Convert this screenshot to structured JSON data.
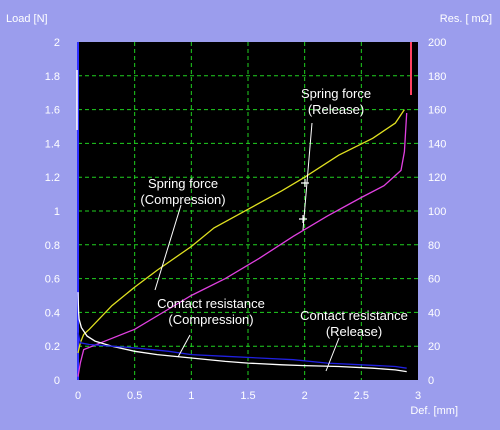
{
  "chart_data": {
    "type": "line",
    "left_axis_label": "Load [N]",
    "right_axis_label": "Res. [ mΩ]",
    "x_axis_label": "Def. [mm]",
    "xlim": [
      0,
      3
    ],
    "ylim_left": [
      0,
      2
    ],
    "ylim_right": [
      0,
      200
    ],
    "x_ticks": [
      "0",
      "0.5",
      "1",
      "1.5",
      "2",
      "2.5",
      "3"
    ],
    "y_left_ticks": [
      "0",
      "0.2",
      "0.4",
      "0.6",
      "0.8",
      "1",
      "1.2",
      "1.4",
      "1.6",
      "1.8",
      "2"
    ],
    "y_right_ticks": [
      "0",
      "20",
      "40",
      "60",
      "80",
      "100",
      "120",
      "140",
      "160",
      "180",
      "200"
    ],
    "grid": true,
    "background_color": "#000000",
    "grid_color": "#20d020",
    "series": [
      {
        "color": "#e0e020",
        "axis": "left",
        "x": [
          0,
          0.02,
          0.05,
          0.1,
          0.3,
          0.5,
          0.7,
          1.0,
          1.2,
          1.5,
          1.8,
          2.0,
          2.3,
          2.6,
          2.8,
          2.88
        ],
        "y": [
          0.16,
          0.22,
          0.27,
          0.3,
          0.44,
          0.55,
          0.65,
          0.79,
          0.9,
          1.01,
          1.12,
          1.2,
          1.33,
          1.43,
          1.52,
          1.6
        ]
      },
      {
        "color": "#e040e0",
        "axis": "left",
        "x": [
          0,
          0.02,
          0.05,
          0.2,
          0.5,
          0.8,
          1.0,
          1.3,
          1.6,
          1.9,
          2.2,
          2.5,
          2.7,
          2.85,
          2.88,
          2.9
        ],
        "y": [
          0.02,
          0.1,
          0.18,
          0.22,
          0.3,
          0.42,
          0.5,
          0.6,
          0.72,
          0.85,
          0.97,
          1.08,
          1.15,
          1.24,
          1.35,
          1.58
        ]
      },
      {
        "color": "#ffffff",
        "axis": "right",
        "x": [
          0,
          0.005,
          0.01,
          0.03,
          0.08,
          0.15,
          0.3,
          0.5,
          0.7,
          1.0,
          1.3,
          1.5,
          1.8,
          2.0,
          2.3,
          2.6,
          2.8,
          2.9
        ],
        "y": [
          52,
          40,
          36,
          31,
          26,
          23,
          20,
          17,
          15,
          13,
          11,
          10,
          9,
          8.5,
          8,
          7,
          6,
          5
        ]
      },
      {
        "color": "#2020e0",
        "axis": "right",
        "x": [
          0,
          0.02,
          0.1,
          0.3,
          0.5,
          0.8,
          1.0,
          1.3,
          1.6,
          1.9,
          2.2,
          2.5,
          2.8,
          2.9
        ],
        "y": [
          28,
          22,
          21,
          20,
          19,
          17,
          15,
          14,
          13,
          12,
          10,
          9,
          8,
          7
        ]
      }
    ],
    "annotations": [
      {
        "lines": [
          "Spring force",
          "(Release)"
        ]
      },
      {
        "lines": [
          "Spring force",
          "(Compression)"
        ]
      },
      {
        "lines": [
          "Contact resistance",
          "(Compression)"
        ]
      },
      {
        "lines": [
          "Contact resistance",
          "(Release)"
        ]
      }
    ]
  }
}
